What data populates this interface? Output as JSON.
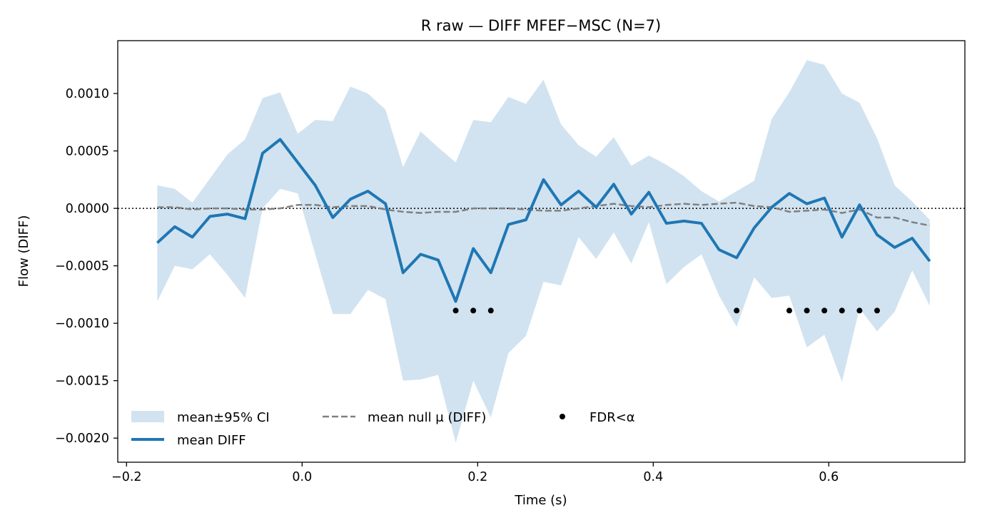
{
  "chart_data": {
    "type": "line",
    "title": "R raw — DIFF MFEF−MSC (N=7)",
    "xlabel": "Time (s)",
    "ylabel": "Flow (DIFF)",
    "xlim": [
      -0.21,
      0.755
    ],
    "ylim": [
      -0.00221,
      0.00146
    ],
    "xticks": [
      -0.2,
      0.0,
      0.2,
      0.4,
      0.6
    ],
    "xtick_labels": [
      "−0.2",
      "0.0",
      "0.2",
      "0.4",
      "0.6"
    ],
    "yticks": [
      0.001,
      0.0005,
      0.0,
      -0.0005,
      -0.001,
      -0.0015,
      -0.002
    ],
    "ytick_labels": [
      "0.0010",
      "0.0005",
      "0.0000",
      "−0.0005",
      "−0.0010",
      "−0.0015",
      "−0.0020"
    ],
    "reference_line_y": 0.0,
    "grid": false,
    "legend_placement": "lower-left",
    "x": [
      -0.165,
      -0.145,
      -0.125,
      -0.105,
      -0.085,
      -0.065,
      -0.045,
      -0.025,
      -0.005,
      0.015,
      0.035,
      0.055,
      0.075,
      0.095,
      0.115,
      0.135,
      0.155,
      0.175,
      0.195,
      0.215,
      0.235,
      0.255,
      0.275,
      0.295,
      0.315,
      0.335,
      0.355,
      0.375,
      0.395,
      0.415,
      0.435,
      0.455,
      0.475,
      0.495,
      0.515,
      0.535,
      0.555,
      0.575,
      0.595,
      0.615,
      0.635,
      0.655,
      0.675,
      0.695,
      0.715
    ],
    "series": [
      {
        "name": "mean DIFF",
        "color": "#1f77b4",
        "values": [
          -0.0003,
          -0.00016,
          -0.00025,
          -7e-05,
          -5e-05,
          -9e-05,
          0.00048,
          0.0006,
          0.0004,
          0.0002,
          -8e-05,
          8e-05,
          0.00015,
          4e-05,
          -0.00056,
          -0.0004,
          -0.00045,
          -0.00081,
          -0.00035,
          -0.00056,
          -0.00014,
          -0.0001,
          0.00025,
          3e-05,
          0.00015,
          1e-05,
          0.00021,
          -5e-05,
          0.00014,
          -0.00013,
          -0.00011,
          -0.00013,
          -0.00036,
          -0.00043,
          -0.00017,
          1e-05,
          0.00013,
          4e-05,
          9e-05,
          -0.00025,
          3e-05,
          -0.00023,
          -0.00034,
          -0.00026,
          -0.00046
        ]
      },
      {
        "name": "mean null μ (DIFF)",
        "color": "#808080",
        "values": [
          1e-05,
          1e-05,
          -1e-05,
          0.0,
          0.0,
          -1e-05,
          -1e-05,
          0.0,
          3e-05,
          3e-05,
          1e-05,
          2e-05,
          2e-05,
          -1e-05,
          -3e-05,
          -4e-05,
          -3e-05,
          -3e-05,
          0.0,
          0.0,
          0.0,
          -1e-05,
          -2e-05,
          -2e-05,
          0.0,
          2e-05,
          4e-05,
          2e-05,
          1e-05,
          3e-05,
          4e-05,
          3e-05,
          4e-05,
          5e-05,
          2e-05,
          1e-05,
          -3e-05,
          -2e-05,
          -1e-05,
          -4e-05,
          -1e-05,
          -8e-05,
          -8e-05,
          -0.00012,
          -0.00015
        ]
      }
    ],
    "ci_band": {
      "name": "mean±95% CI",
      "color": "#d1e3f0",
      "upper": [
        0.0002,
        0.00017,
        5e-05,
        0.00026,
        0.00047,
        0.0006,
        0.00096,
        0.00101,
        0.00065,
        0.00077,
        0.00076,
        0.00106,
        0.001,
        0.00086,
        0.00036,
        0.00067,
        0.00053,
        0.0004,
        0.00077,
        0.00075,
        0.00097,
        0.00091,
        0.00112,
        0.00073,
        0.00055,
        0.00045,
        0.00062,
        0.00037,
        0.00046,
        0.00038,
        0.00028,
        0.00015,
        6e-05,
        0.00015,
        0.00024,
        0.00078,
        0.00101,
        0.00129,
        0.00125,
        0.001,
        0.00092,
        0.00061,
        0.0002,
        6e-05,
        -0.0001
      ],
      "lower": [
        -0.00081,
        -0.0005,
        -0.00053,
        -0.0004,
        -0.00058,
        -0.00078,
        0.0,
        0.00017,
        0.00013,
        -0.0004,
        -0.00092,
        -0.00092,
        -0.00071,
        -0.00079,
        -0.0015,
        -0.00149,
        -0.00145,
        -0.00204,
        -0.0015,
        -0.00182,
        -0.00126,
        -0.00111,
        -0.00064,
        -0.00067,
        -0.00025,
        -0.00044,
        -0.00021,
        -0.00048,
        -0.00012,
        -0.00066,
        -0.00051,
        -0.0004,
        -0.00076,
        -0.00103,
        -0.0006,
        -0.00078,
        -0.00076,
        -0.00121,
        -0.0011,
        -0.00151,
        -0.00087,
        -0.00107,
        -0.0009,
        -0.00054,
        -0.00085
      ]
    },
    "significance": {
      "name": "FDR<α",
      "color": "#000000",
      "y": -0.00089,
      "x": [
        0.175,
        0.195,
        0.215,
        0.495,
        0.555,
        0.575,
        0.595,
        0.615,
        0.635,
        0.655
      ]
    }
  }
}
